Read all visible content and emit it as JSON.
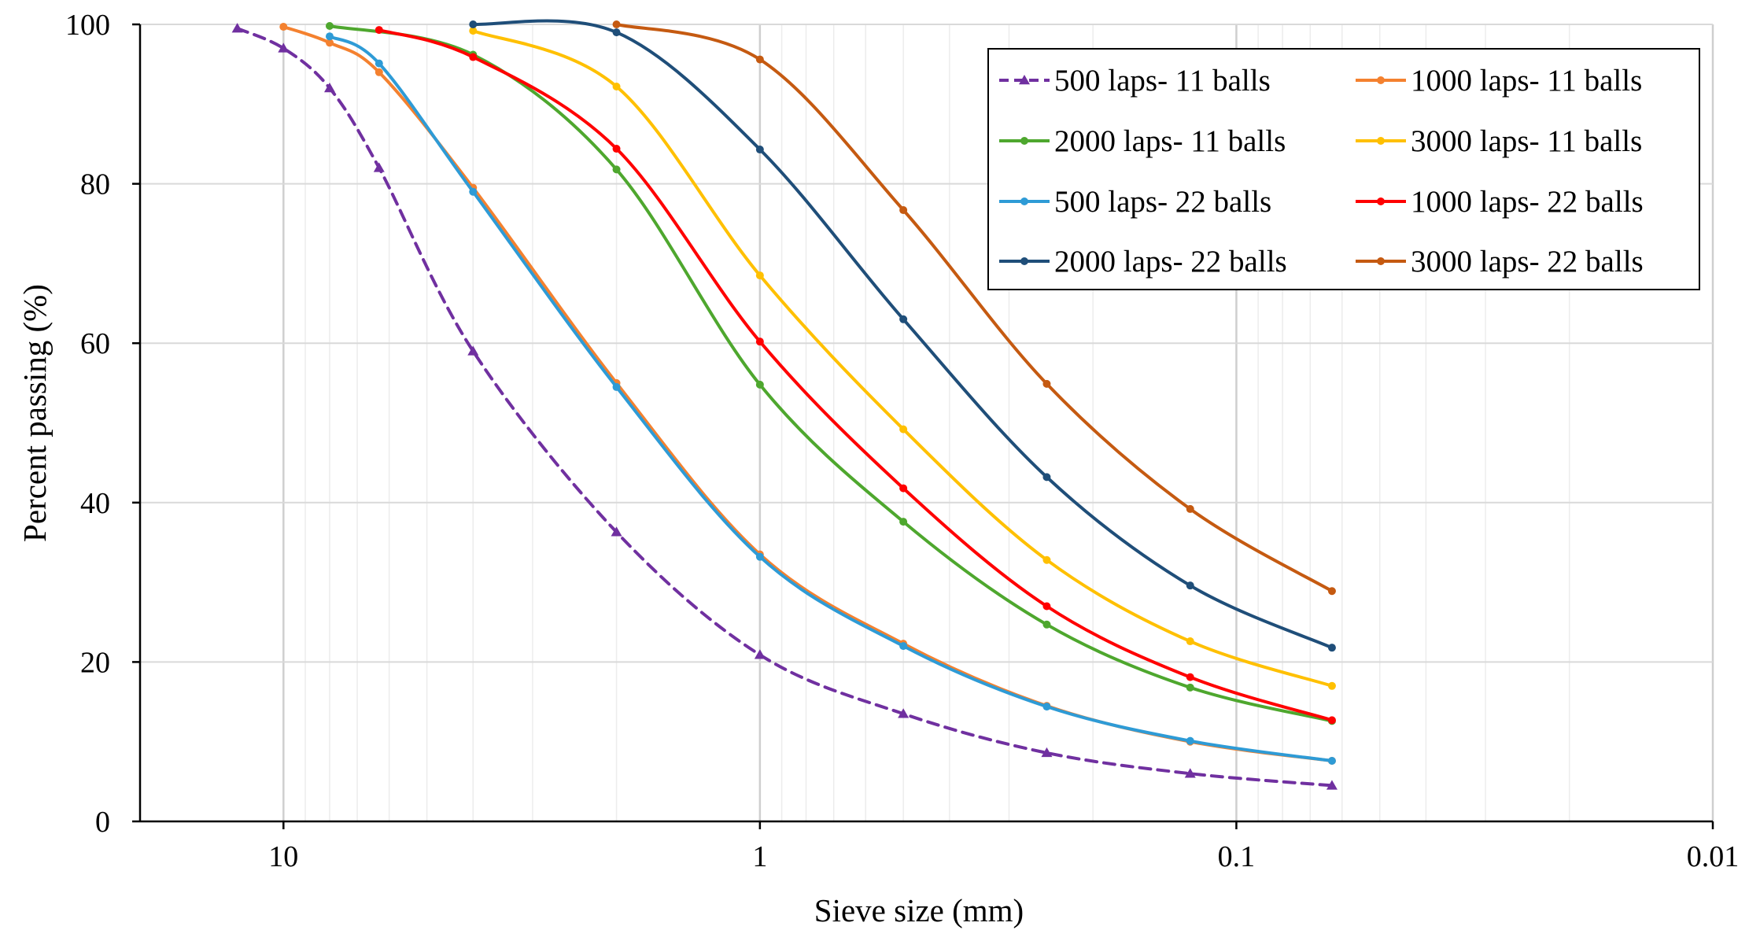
{
  "chart_data": {
    "type": "line",
    "title": "",
    "xlabel": "Sieve size (mm)",
    "ylabel": "Percent passing (%)",
    "x_scale": "log",
    "x_reversed": true,
    "xlim": [
      20,
      0.01
    ],
    "ylim": [
      0,
      100
    ],
    "x_ticks": [
      10,
      1,
      0.1,
      0.01
    ],
    "x_tick_labels": [
      "10",
      "1",
      "0.1",
      "0.01"
    ],
    "y_ticks": [
      0,
      20,
      40,
      60,
      80,
      100
    ],
    "y_tick_labels": [
      "0",
      "20",
      "40",
      "60",
      "80",
      "100"
    ],
    "grid": true,
    "legend_position": "top-right",
    "series": [
      {
        "name": "500 laps- 11 balls",
        "color": "#7030A0",
        "dashed": true,
        "marker": "triangle",
        "x": [
          12.5,
          10,
          8,
          6.3,
          4,
          2,
          1,
          0.5,
          0.25,
          0.125,
          0.063
        ],
        "y": [
          99.5,
          97,
          92,
          82,
          59,
          36.3,
          20.9,
          13.5,
          8.6,
          6,
          4.5
        ]
      },
      {
        "name": "1000 laps- 11 balls",
        "color": "#F4812F",
        "dashed": false,
        "marker": "circle",
        "x": [
          10,
          8,
          6.3,
          4,
          2,
          1,
          0.5,
          0.25,
          0.125,
          0.063
        ],
        "y": [
          99.7,
          97.7,
          94,
          79.5,
          55,
          33.5,
          22.3,
          14.5,
          10,
          7.6
        ]
      },
      {
        "name": "2000 laps- 11 balls",
        "color": "#4EA72E",
        "dashed": false,
        "marker": "circle",
        "x": [
          8,
          4,
          2,
          1,
          0.5,
          0.25,
          0.125,
          0.063
        ],
        "y": [
          99.8,
          96.2,
          81.8,
          54.8,
          37.6,
          24.7,
          16.8,
          12.6
        ]
      },
      {
        "name": "3000 laps- 11 balls",
        "color": "#FFC000",
        "dashed": false,
        "marker": "circle",
        "x": [
          4,
          2,
          1,
          0.5,
          0.25,
          0.125,
          0.063
        ],
        "y": [
          99.2,
          92.2,
          68.5,
          49.2,
          32.8,
          22.6,
          17
        ]
      },
      {
        "name": "500 laps- 22 balls",
        "color": "#2E9BD6",
        "dashed": false,
        "marker": "circle",
        "x": [
          8,
          6.3,
          4,
          2,
          1,
          0.5,
          0.25,
          0.125,
          0.063
        ],
        "y": [
          98.5,
          95.1,
          79,
          54.5,
          33.2,
          22,
          14.4,
          10.1,
          7.6
        ]
      },
      {
        "name": "1000 laps- 22 balls",
        "color": "#FF0000",
        "dashed": false,
        "marker": "circle",
        "x": [
          6.3,
          4,
          2,
          1,
          0.5,
          0.25,
          0.125,
          0.063
        ],
        "y": [
          99.3,
          95.9,
          84.4,
          60.2,
          41.8,
          27,
          18.1,
          12.7
        ]
      },
      {
        "name": "2000 laps- 22 balls",
        "color": "#1F4E79",
        "dashed": false,
        "marker": "circle",
        "x": [
          4,
          2,
          1,
          0.5,
          0.25,
          0.125,
          0.063
        ],
        "y": [
          100,
          99,
          84.3,
          63,
          43.2,
          29.6,
          21.8
        ]
      },
      {
        "name": "3000 laps- 22 balls",
        "color": "#C55A11",
        "dashed": false,
        "marker": "circle",
        "x": [
          2,
          1,
          0.5,
          0.25,
          0.125,
          0.063
        ],
        "y": [
          100,
          95.6,
          76.7,
          54.9,
          39.2,
          28.9
        ]
      }
    ]
  }
}
